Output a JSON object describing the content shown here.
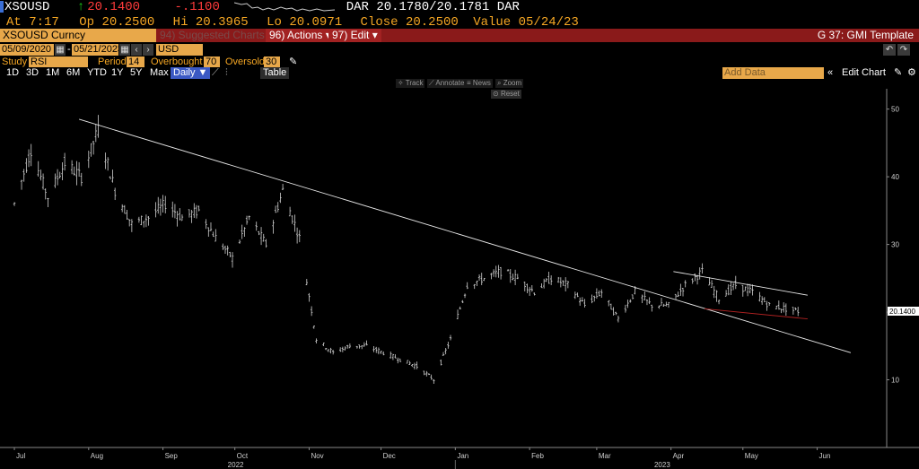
{
  "quote": {
    "ticker": "XSOUSD",
    "arrow": "↑",
    "last": "20.1400",
    "change": "-.1100",
    "dar_label": "DAR",
    "bidask": "20.1780/20.1781",
    "dar_label2": "DAR",
    "at_label": "At",
    "at_time": "7:17",
    "op_label": "Op",
    "op_value": "20.2500",
    "hi_label": "Hi",
    "hi_value": "20.3965",
    "lo_label": "Lo",
    "lo_value": "20.0971",
    "close_label": "Close",
    "close_value": "20.2500",
    "value_label": "Value",
    "value_date": "05/24/23"
  },
  "menubar": {
    "security": "XSOUSD Curncy",
    "suggested": "94) Suggested Charts",
    "actions": "96) Actions ▾",
    "edit": "97) Edit ▾",
    "template": "G 37: GMI Template"
  },
  "daterow": {
    "start": "05/09/2020",
    "end": "05/21/2023",
    "currency": "USD",
    "dash": "-"
  },
  "study": {
    "label": "Study",
    "value": "RSI",
    "period_label": "Period",
    "period": "14",
    "overbought_label": "Overbought",
    "overbought": "70",
    "oversold_label": "Oversold",
    "oversold": "30"
  },
  "periods": [
    "1D",
    "3D",
    "1M",
    "6M",
    "YTD",
    "1Y",
    "5Y",
    "Max"
  ],
  "daily": "Daily ▼",
  "table": "Table",
  "add_data": "Add Data",
  "edit_chart": "Edit Chart",
  "tools": {
    "track": "Track",
    "annotate": "Annotate",
    "news": "News",
    "zoom": "Zoom",
    "reset": "Reset"
  },
  "colors": {
    "background": "#000000",
    "bars": "#d0d0d0",
    "trendline": "#e8e8e8",
    "support": "#b22222",
    "orange": "#f5a623",
    "red": "#ff3b3b",
    "green": "#19d219"
  },
  "chart_data": {
    "type": "line",
    "style": "ohlc-bars",
    "ylim": [
      0,
      53
    ],
    "yticks": [
      10,
      20,
      30,
      40,
      50
    ],
    "ytick_labels": [
      "10",
      "20",
      "30",
      "40",
      "50"
    ],
    "last_value_label": "20.1400",
    "month_labels": [
      "Jul",
      "Aug",
      "Sep",
      "Oct",
      "Nov",
      "Dec",
      "Jan",
      "Feb",
      "Mar",
      "Apr",
      "May",
      "Jun"
    ],
    "year_labels": [
      "2022",
      "2023"
    ],
    "grid": false,
    "series": [
      {
        "x": [
          "2022-07-01",
          "2022-07-08",
          "2022-07-15",
          "2022-07-22",
          "2022-07-29",
          "2022-08-05",
          "2022-08-12",
          "2022-08-19",
          "2022-08-26",
          "2022-09-02",
          "2022-09-09",
          "2022-09-16",
          "2022-09-23",
          "2022-09-30",
          "2022-10-07",
          "2022-10-14",
          "2022-10-21",
          "2022-10-28",
          "2022-11-04",
          "2022-11-11",
          "2022-11-18",
          "2022-11-25",
          "2022-12-02",
          "2022-12-09",
          "2022-12-16",
          "2022-12-23",
          "2022-12-30",
          "2023-01-06",
          "2023-01-13",
          "2023-01-20",
          "2023-01-27",
          "2023-02-03",
          "2023-02-10",
          "2023-02-17",
          "2023-02-24",
          "2023-03-03",
          "2023-03-10",
          "2023-03-17",
          "2023-03-24",
          "2023-03-31",
          "2023-04-07",
          "2023-04-14",
          "2023-04-21",
          "2023-04-28",
          "2023-05-05",
          "2023-05-12",
          "2023-05-19",
          "2023-05-24"
        ],
        "values": [
          36,
          44,
          37,
          42,
          40,
          47,
          38,
          33,
          34,
          36,
          34,
          35,
          31,
          28,
          34,
          30,
          38,
          31,
          16,
          14,
          15,
          15,
          14,
          13,
          12,
          10,
          16,
          24,
          25,
          26,
          25,
          23,
          25,
          24,
          21,
          23,
          19,
          23,
          21,
          21,
          24,
          26,
          22,
          24,
          23,
          21,
          20.5,
          20.14
        ]
      }
    ],
    "annotations": [
      {
        "label": "trendline",
        "points": [
          [
            "2022-07-28",
            48.5
          ],
          [
            "2023-06-15",
            14
          ]
        ]
      },
      {
        "label": "upper channel",
        "points": [
          [
            "2023-04-02",
            26
          ],
          [
            "2023-05-28",
            22.5
          ]
        ]
      },
      {
        "label": "lower support",
        "points": [
          [
            "2023-04-15",
            20.5
          ],
          [
            "2023-05-28",
            19
          ]
        ]
      }
    ]
  }
}
